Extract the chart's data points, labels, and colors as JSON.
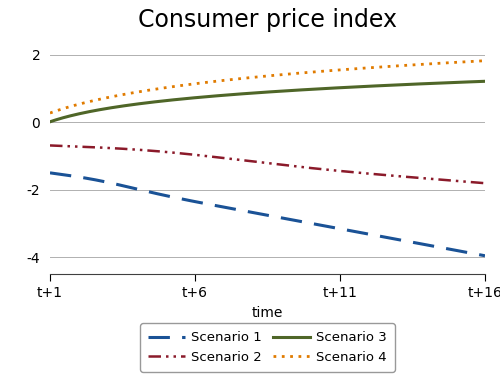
{
  "title": "Consumer price index",
  "xlabel": "time",
  "xlim": [
    1,
    16
  ],
  "ylim": [
    -4.5,
    2.5
  ],
  "yticks": [
    -4,
    -2,
    0,
    2
  ],
  "xtick_positions": [
    1,
    6,
    11,
    16
  ],
  "xtick_labels": [
    "t+1",
    "t+6",
    "t+11",
    "t+16"
  ],
  "s1_color": "#1a5296",
  "s2_color": "#8b1a2a",
  "s3_color": "#4f6628",
  "s4_color": "#e07b00",
  "background_color": "#ffffff",
  "grid_color": "#b0b0b0",
  "title_fontsize": 17,
  "axis_fontsize": 10,
  "tick_fontsize": 10,
  "legend_fontsize": 9.5,
  "s1_lw": 2.2,
  "s2_lw": 1.8,
  "s3_lw": 2.2,
  "s4_lw": 2.0
}
